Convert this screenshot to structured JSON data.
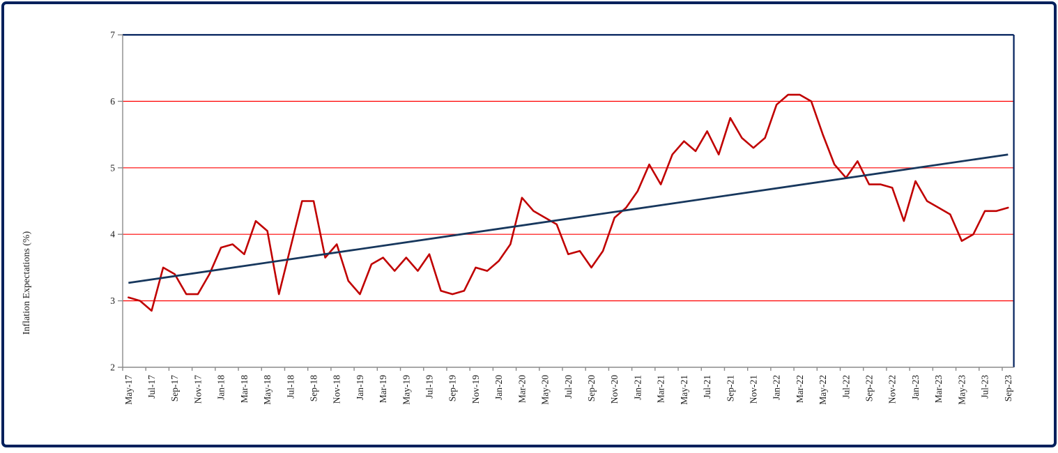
{
  "window": {
    "background": "#ffffff",
    "border_color": "#01205c"
  },
  "chart_data": {
    "type": "line",
    "title": "",
    "xlabel": "",
    "ylabel": "Inflation Expectations (%)",
    "ylim": [
      2,
      7
    ],
    "yticks": [
      "2",
      "3",
      "4",
      "5",
      "6",
      "7"
    ],
    "gridline_values": [
      3,
      4,
      5,
      6
    ],
    "gridline_color": "#ff0000",
    "axis_color": "#8a8a8a",
    "plot_border_color": "#01205c",
    "text_color": "#1c1c1c",
    "legend_position": "none",
    "x_label_every": 2,
    "categories": [
      "May-17",
      "Jun-17",
      "Jul-17",
      "Aug-17",
      "Sep-17",
      "Oct-17",
      "Nov-17",
      "Dec-17",
      "Jan-18",
      "Feb-18",
      "Mar-18",
      "Apr-18",
      "May-18",
      "Jun-18",
      "Jul-18",
      "Aug-18",
      "Sep-18",
      "Oct-18",
      "Nov-18",
      "Dec-18",
      "Jan-19",
      "Feb-19",
      "Mar-19",
      "Apr-19",
      "May-19",
      "Jun-19",
      "Jul-19",
      "Aug-19",
      "Sep-19",
      "Oct-19",
      "Nov-19",
      "Dec-19",
      "Jan-20",
      "Feb-20",
      "Mar-20",
      "Apr-20",
      "May-20",
      "Jun-20",
      "Jul-20",
      "Aug-20",
      "Sep-20",
      "Oct-20",
      "Nov-20",
      "Dec-20",
      "Jan-21",
      "Feb-21",
      "Mar-21",
      "Apr-21",
      "May-21",
      "Jun-21",
      "Jul-21",
      "Aug-21",
      "Sep-21",
      "Oct-21",
      "Nov-21",
      "Dec-21",
      "Jan-22",
      "Feb-22",
      "Mar-22",
      "Apr-22",
      "May-22",
      "Jun-22",
      "Jul-22",
      "Aug-22",
      "Sep-22",
      "Oct-22",
      "Nov-22",
      "Dec-22",
      "Jan-23",
      "Feb-23",
      "Mar-23",
      "Apr-23",
      "May-23",
      "Jun-23",
      "Jul-23",
      "Aug-23",
      "Sep-23"
    ],
    "series": [
      {
        "name": "inflation_expectations",
        "color": "#c00000",
        "values": [
          3.05,
          3.0,
          2.85,
          3.5,
          3.4,
          3.1,
          3.1,
          3.4,
          3.8,
          3.85,
          3.7,
          4.2,
          4.05,
          3.1,
          3.8,
          4.5,
          4.5,
          3.65,
          3.85,
          3.3,
          3.1,
          3.55,
          3.65,
          3.45,
          3.65,
          3.45,
          3.7,
          3.15,
          3.1,
          3.15,
          3.5,
          3.45,
          3.6,
          3.85,
          4.55,
          4.35,
          4.25,
          4.15,
          3.7,
          3.75,
          3.5,
          3.75,
          4.25,
          4.4,
          4.65,
          5.05,
          4.75,
          5.2,
          5.4,
          5.25,
          5.55,
          5.2,
          5.75,
          5.45,
          5.3,
          5.45,
          5.95,
          6.1,
          6.1,
          6.0,
          5.5,
          5.05,
          4.85,
          5.1,
          4.75,
          4.75,
          4.7,
          4.2,
          4.8,
          4.5,
          4.4,
          4.3,
          3.9,
          4.0,
          4.35,
          4.35,
          4.4
        ]
      },
      {
        "name": "linear_trend",
        "color": "#17375d",
        "trend": true,
        "start_value": 3.27,
        "end_value": 5.2
      }
    ]
  }
}
